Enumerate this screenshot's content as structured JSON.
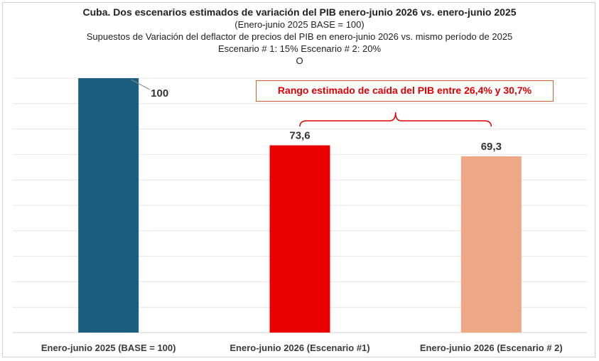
{
  "chart_data": {
    "type": "bar",
    "title": "Cuba. Dos escenarios estimados de variación del PIB enero-junio 2026 vs. enero-junio 2025",
    "subtitle_lines": [
      "(Enero-junio 2025 BASE = 100)",
      "Supuestos de Variación del deflactor de precios del PIB en enero-junio 2026 vs. mismo período de 2025",
      "Escenario # 1: 15% Escenario # 2: 20%",
      "O"
    ],
    "categories": [
      "Enero-junio 2025 (BASE = 100)",
      "Enero-junio 2026 (Escenario #1)",
      "Enero-junio 2026 (Escenario # 2)"
    ],
    "values": [
      100,
      73.6,
      69.3
    ],
    "data_labels": [
      "100",
      "73,6",
      "69,3"
    ],
    "bar_colors": [
      "#1b5e80",
      "#ea0000",
      "#efa885"
    ],
    "ylim": [
      0,
      100
    ],
    "grid": true,
    "annotation": "Rango estimado de caída del PIB entre 26,4% y 30,7%",
    "annotation_color": "#e10000",
    "annotation_border": "#d9622b"
  }
}
